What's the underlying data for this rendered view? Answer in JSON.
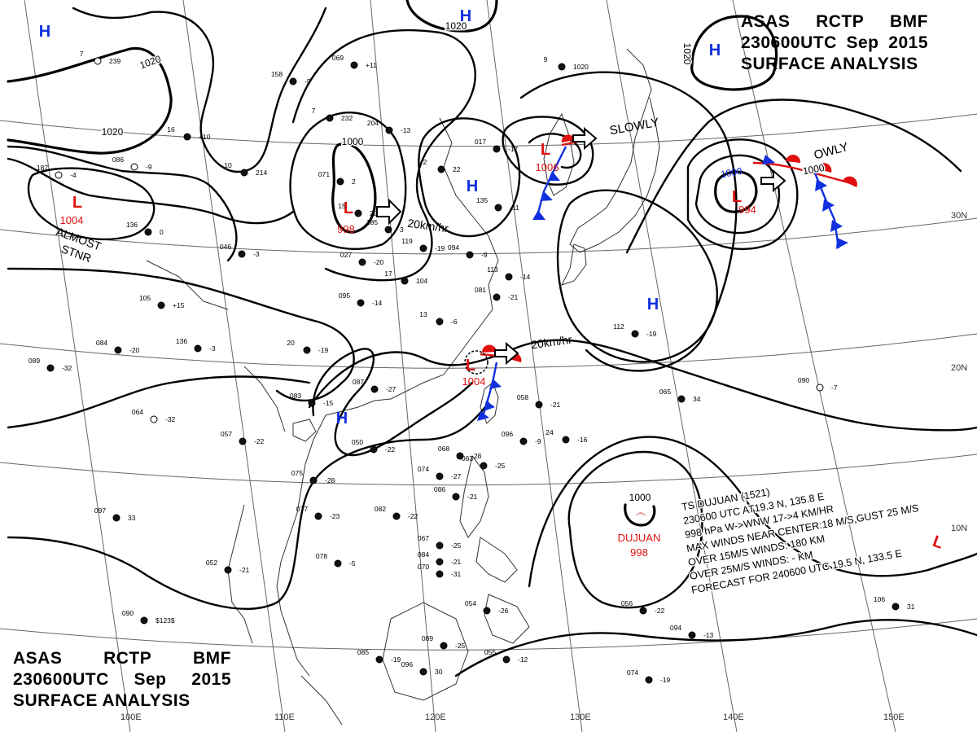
{
  "header": {
    "line1": [
      "ASAS",
      "RCTP",
      "BMF"
    ],
    "line2": [
      "230600UTC",
      "Sep",
      "2015"
    ],
    "line3": "SURFACE ANALYSIS"
  },
  "colors": {
    "high": "#1030e0",
    "low": "#e01010",
    "front_cold": "#1030e0",
    "front_warm": "#e01010",
    "isobar": "#000000",
    "grid": "#555555",
    "coast": "#333333"
  },
  "highs": [
    {
      "id": "h-nw",
      "symbol": "H"
    },
    {
      "id": "h-top",
      "symbol": "H"
    },
    {
      "id": "h-ne",
      "symbol": "H"
    },
    {
      "id": "h-center",
      "symbol": "H"
    },
    {
      "id": "h-east",
      "symbol": "H"
    },
    {
      "id": "h-sw",
      "symbol": "H"
    }
  ],
  "lows": [
    {
      "id": "l-west",
      "symbol": "L",
      "pressure": "1004"
    },
    {
      "id": "l-mid",
      "symbol": "L",
      "pressure": "998"
    },
    {
      "id": "l-north",
      "symbol": "L",
      "pressure": "1006"
    },
    {
      "id": "l-east",
      "symbol": "L",
      "pressure": "994"
    },
    {
      "id": "l-south",
      "symbol": "L",
      "pressure": "1004"
    },
    {
      "id": "l-forecast",
      "symbol": "L"
    }
  ],
  "isobar_labels": [
    "1020",
    "1020",
    "1020",
    "1020",
    "1000",
    "1000",
    "1000"
  ],
  "annotations": {
    "almost_stnr": [
      "ALMOST",
      "STNR"
    ],
    "move_mid": "20km/hr",
    "move_north": "SLOWLY",
    "move_east": "OWLY",
    "move_south": "20km/hr"
  },
  "typhoon": {
    "name": "DUJUAN",
    "pressure": "998",
    "info_lines": [
      "TS DUJUAN (1521)",
      "230600 UTC AT19.3 N, 135.8 E",
      "998 hPa W->WNW 17->4 KM/HR",
      "MAX WINDS NEAR CENTER:18 M/S,GUST 25 M/S",
      "OVER 15M/S WINDS: 180 KM",
      "OVER 25M/S WINDS: - KM",
      "FORECAST FOR 240600 UTC 19.5 N, 133.5 E"
    ]
  },
  "grid_labels": {
    "lat": [
      "30N",
      "20N",
      "10N"
    ],
    "lon": [
      "100E",
      "110E",
      "120E",
      "130E",
      "140E",
      "150E"
    ]
  },
  "stations": [
    {
      "t": "7",
      "p": "239"
    },
    {
      "t": "158",
      "p": "-5"
    },
    {
      "t": "069",
      "p": "+11"
    },
    {
      "t": "9",
      "p": "1020"
    },
    {
      "t": "16",
      "p": "+10"
    },
    {
      "t": "7",
      "p": "232"
    },
    {
      "t": "204",
      "p": "-13"
    },
    {
      "t": "086",
      "p": "-9"
    },
    {
      "t": "187",
      "p": "-4"
    },
    {
      "t": "10",
      "p": "214"
    },
    {
      "t": "071",
      "p": "2"
    },
    {
      "t": "2",
      "p": "22"
    },
    {
      "t": "017",
      "p": "-17"
    },
    {
      "t": "135",
      "p": "-11"
    },
    {
      "t": "15",
      "p": "22"
    },
    {
      "t": "185",
      "p": "3"
    },
    {
      "t": "136",
      "p": "0"
    },
    {
      "t": "046",
      "p": "-3"
    },
    {
      "t": "027",
      "p": "-20"
    },
    {
      "t": "119",
      "p": "-19"
    },
    {
      "t": "094",
      "p": "-9"
    },
    {
      "t": "17",
      "p": "104"
    },
    {
      "t": "113",
      "p": "-14"
    },
    {
      "t": "081",
      "p": "-21"
    },
    {
      "t": "105",
      "p": "+15"
    },
    {
      "t": "095",
      "p": "-14"
    },
    {
      "t": "13",
      "p": "-6"
    },
    {
      "t": "112",
      "p": "-19"
    },
    {
      "t": "084",
      "p": "-20"
    },
    {
      "t": "136",
      "p": "-3"
    },
    {
      "t": "20",
      "p": "-19"
    },
    {
      "t": "089",
      "p": "-32"
    },
    {
      "t": "087",
      "p": "-27"
    },
    {
      "t": "083",
      "p": "-15"
    },
    {
      "t": "058",
      "p": "-21"
    },
    {
      "t": "065",
      "p": "34"
    },
    {
      "t": "090",
      "p": "-7"
    },
    {
      "t": "064",
      "p": "-32"
    },
    {
      "t": "057",
      "p": "-22"
    },
    {
      "t": "050",
      "p": "-22"
    },
    {
      "t": "096",
      "p": "-9"
    },
    {
      "t": "24",
      "p": "-16"
    },
    {
      "t": "068",
      "p": "-28"
    },
    {
      "t": "063",
      "p": "-25"
    },
    {
      "t": "074",
      "p": "-27"
    },
    {
      "t": "086",
      "p": "-21"
    },
    {
      "t": "075",
      "p": "-28"
    },
    {
      "t": "097",
      "p": "33"
    },
    {
      "t": "077",
      "p": "-23"
    },
    {
      "t": "082",
      "p": "-22"
    },
    {
      "t": "067",
      "p": "-25"
    },
    {
      "t": "084",
      "p": "-21"
    },
    {
      "t": "070",
      "p": "-31"
    },
    {
      "t": "052",
      "p": "-21"
    },
    {
      "t": "078",
      "p": "-5"
    },
    {
      "t": "106",
      "p": "31"
    },
    {
      "t": "054",
      "p": "-26"
    },
    {
      "t": "090",
      "p": "$123$"
    },
    {
      "t": "056",
      "p": "-22"
    },
    {
      "t": "094",
      "p": "-13"
    },
    {
      "t": "085",
      "p": "-19"
    },
    {
      "t": "096",
      "p": "30"
    },
    {
      "t": "055",
      "p": "-12"
    },
    {
      "t": "074",
      "p": "-19"
    },
    {
      "t": "089",
      "p": "-25"
    }
  ]
}
